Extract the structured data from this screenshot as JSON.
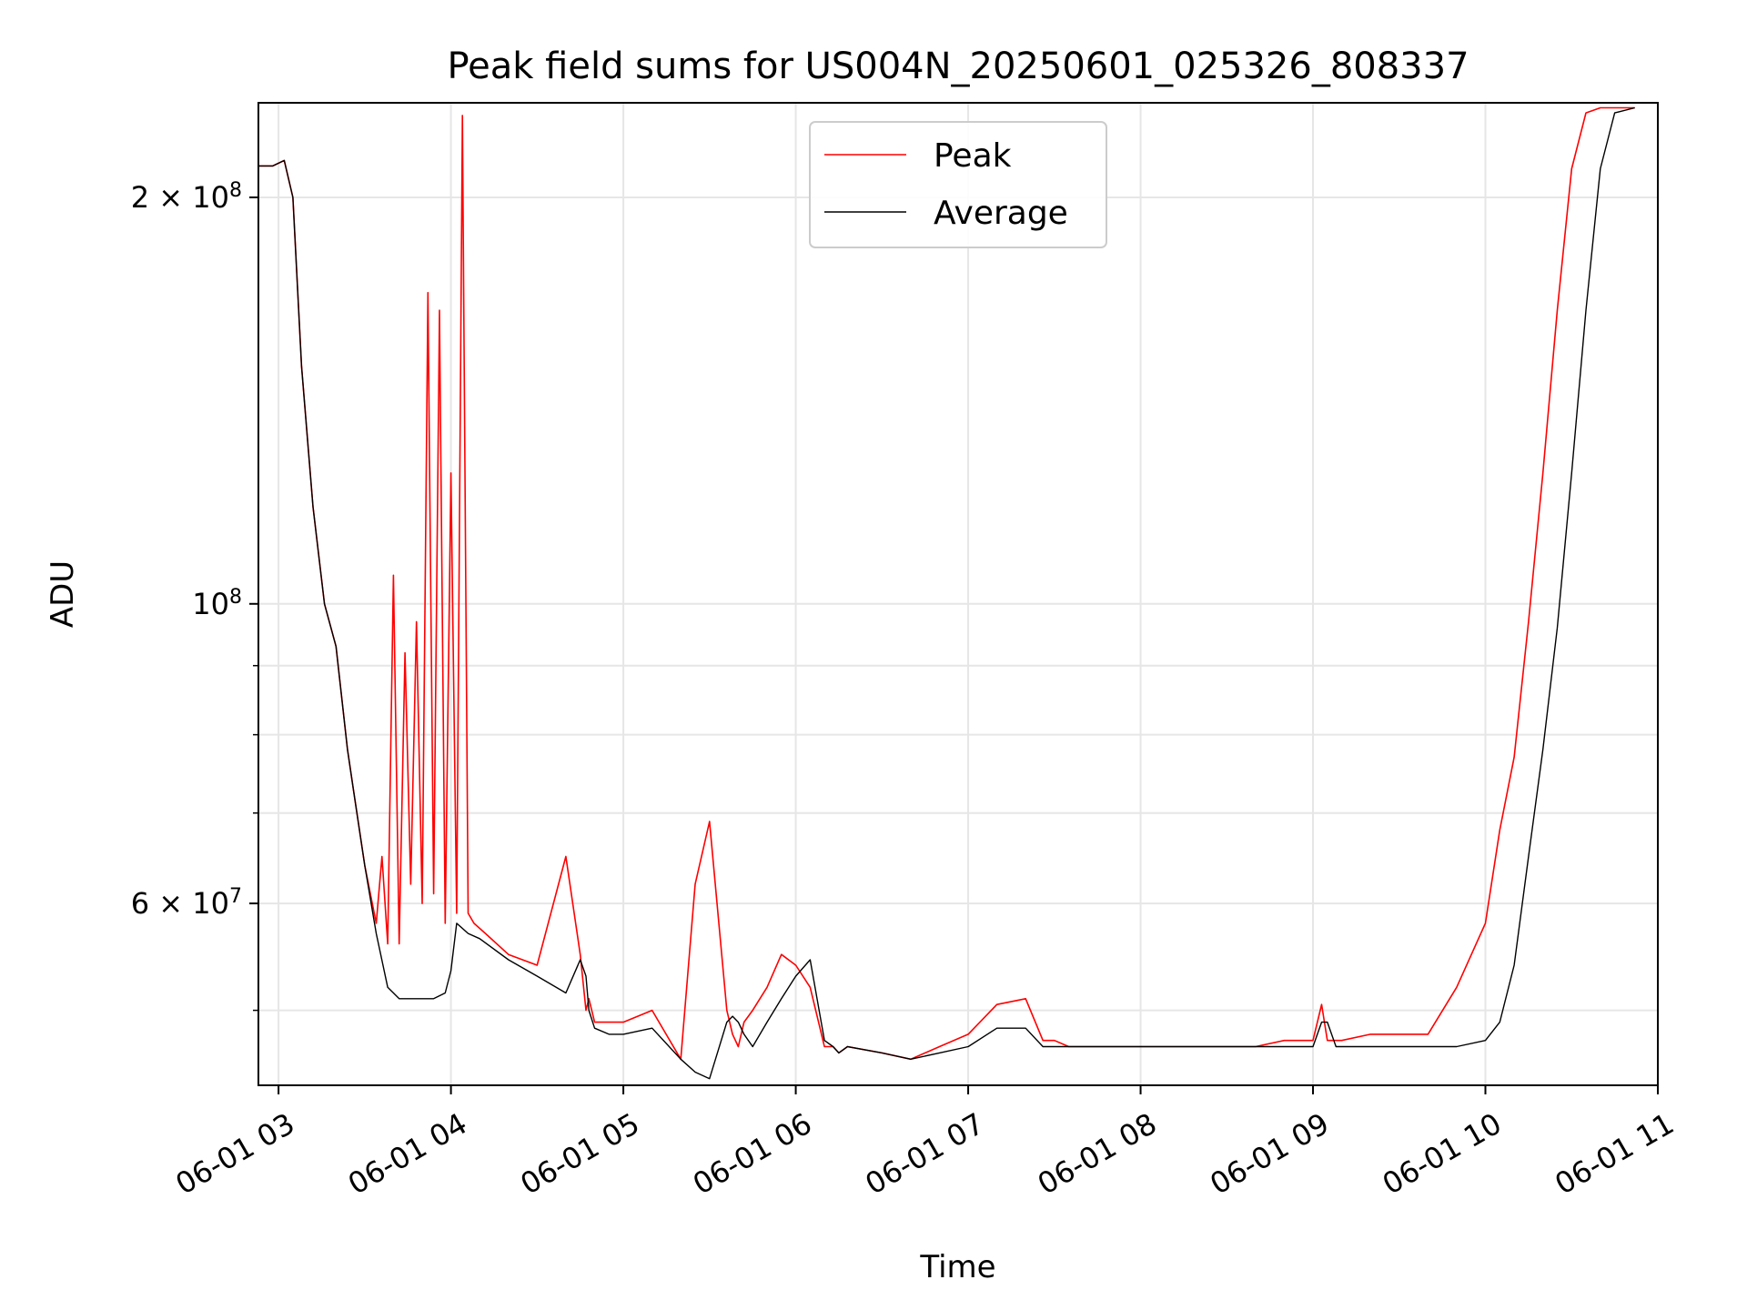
{
  "chart_data": {
    "type": "line",
    "title": "Peak field sums for US004N_20250601_025326_808337",
    "xlabel": "Time",
    "ylabel": "ADU",
    "y_scale": "log",
    "grid": true,
    "legend_position": "upper center",
    "xlim": [
      "2025-06-01 02:53",
      "2025-06-01 11:00"
    ],
    "ylim": [
      44000000,
      235000000
    ],
    "x_ticks": [
      "06-01 03",
      "06-01 04",
      "06-01 05",
      "06-01 06",
      "06-01 07",
      "06-01 08",
      "06-01 09",
      "06-01 10",
      "06-01 11"
    ],
    "y_ticks": [
      {
        "value": 60000000,
        "base": "6 × 10",
        "exp": "7"
      },
      {
        "value": 100000000,
        "base": "10",
        "exp": "8"
      },
      {
        "value": 200000000,
        "base": "2 × 10",
        "exp": "8"
      }
    ],
    "series": [
      {
        "name": "Peak",
        "color": "#ff0000",
        "x": [
          "02:53",
          "02:58",
          "03:02",
          "03:05",
          "03:08",
          "03:12",
          "03:16",
          "03:20",
          "03:24",
          "03:26",
          "03:30",
          "03:34",
          "03:36",
          "03:38",
          "03:40",
          "03:42",
          "03:44",
          "03:46",
          "03:48",
          "03:50",
          "03:52",
          "03:54",
          "03:56",
          "03:58",
          "04:00",
          "04:02",
          "04:04",
          "04:06",
          "04:08",
          "04:12",
          "04:20",
          "04:30",
          "04:40",
          "04:45",
          "04:47",
          "04:48",
          "04:50",
          "04:55",
          "05:00",
          "05:10",
          "05:20",
          "05:25",
          "05:30",
          "05:36",
          "05:38",
          "05:40",
          "05:42",
          "05:45",
          "05:50",
          "05:55",
          "06:00",
          "06:05",
          "06:10",
          "06:13",
          "06:15",
          "06:18",
          "06:30",
          "06:40",
          "06:50",
          "07:00",
          "07:10",
          "07:20",
          "07:26",
          "07:30",
          "07:35",
          "07:38",
          "07:40",
          "07:45",
          "07:50",
          "08:00",
          "08:20",
          "08:40",
          "08:50",
          "09:00",
          "09:03",
          "09:05",
          "09:08",
          "09:10",
          "09:20",
          "09:40",
          "09:50",
          "10:00",
          "10:05",
          "10:10",
          "10:15",
          "10:20",
          "10:25",
          "10:30",
          "10:35",
          "10:40",
          "10:45",
          "10:52"
        ],
        "y": [
          211000000,
          211000000,
          213000000,
          200000000,
          150000000,
          118000000,
          100000000,
          93000000,
          78000000,
          73000000,
          64000000,
          58000000,
          65000000,
          56000000,
          105000000,
          56000000,
          92000000,
          62000000,
          97000000,
          60000000,
          170000000,
          61000000,
          165000000,
          58000000,
          125000000,
          59000000,
          230000000,
          59000000,
          58000000,
          57000000,
          55000000,
          54000000,
          65000000,
          55000000,
          50000000,
          51000000,
          49000000,
          49000000,
          49000000,
          50000000,
          46000000,
          62000000,
          69000000,
          50000000,
          48000000,
          47000000,
          49000000,
          50000000,
          52000000,
          55000000,
          54000000,
          52000000,
          47000000,
          47000000,
          46500000,
          47000000,
          46500000,
          46000000,
          47000000,
          48000000,
          50500000,
          51000000,
          47500000,
          47500000,
          47000000,
          47000000,
          47000000,
          47000000,
          47000000,
          47000000,
          47000000,
          47000000,
          47500000,
          47500000,
          50500000,
          47500000,
          47500000,
          47500000,
          48000000,
          48000000,
          52000000,
          58000000,
          68000000,
          77000000,
          97000000,
          125000000,
          165000000,
          210000000,
          231000000,
          233000000,
          233000000,
          233000000
        ]
      },
      {
        "name": "Average",
        "color": "#000000",
        "x": [
          "02:53",
          "02:58",
          "03:02",
          "03:05",
          "03:08",
          "03:12",
          "03:16",
          "03:20",
          "03:24",
          "03:26",
          "03:30",
          "03:34",
          "03:38",
          "03:42",
          "03:46",
          "03:50",
          "03:54",
          "03:58",
          "04:00",
          "04:02",
          "04:06",
          "04:10",
          "04:20",
          "04:30",
          "04:40",
          "04:45",
          "04:47",
          "04:48",
          "04:50",
          "04:55",
          "05:00",
          "05:10",
          "05:20",
          "05:25",
          "05:30",
          "05:36",
          "05:38",
          "05:40",
          "05:42",
          "05:45",
          "05:50",
          "05:55",
          "06:00",
          "06:05",
          "06:10",
          "06:13",
          "06:15",
          "06:18",
          "06:30",
          "06:40",
          "06:50",
          "07:00",
          "07:10",
          "07:20",
          "07:26",
          "07:30",
          "07:35",
          "07:38",
          "07:40",
          "07:45",
          "07:50",
          "08:00",
          "08:20",
          "08:40",
          "08:50",
          "09:00",
          "09:03",
          "09:05",
          "09:08",
          "09:10",
          "09:20",
          "09:40",
          "09:50",
          "10:00",
          "10:05",
          "10:10",
          "10:15",
          "10:20",
          "10:25",
          "10:30",
          "10:35",
          "10:40",
          "10:45",
          "10:52"
        ],
        "y": [
          211000000,
          211000000,
          213000000,
          200000000,
          150000000,
          118000000,
          100000000,
          93000000,
          78000000,
          73000000,
          64000000,
          57000000,
          52000000,
          51000000,
          51000000,
          51000000,
          51000000,
          51500000,
          53500000,
          58000000,
          57000000,
          56500000,
          54500000,
          53000000,
          51500000,
          54500000,
          53000000,
          50000000,
          48500000,
          48000000,
          48000000,
          48500000,
          46000000,
          45000000,
          44500000,
          49000000,
          49500000,
          49000000,
          48000000,
          47000000,
          49000000,
          51000000,
          53000000,
          54500000,
          47500000,
          47000000,
          46500000,
          47000000,
          46500000,
          46000000,
          46500000,
          47000000,
          48500000,
          48500000,
          47000000,
          47000000,
          47000000,
          47000000,
          47000000,
          47000000,
          47000000,
          47000000,
          47000000,
          47000000,
          47000000,
          47000000,
          49000000,
          49000000,
          47000000,
          47000000,
          47000000,
          47000000,
          47000000,
          47500000,
          49000000,
          54000000,
          65000000,
          78000000,
          96000000,
          125000000,
          165000000,
          210000000,
          231000000,
          233000000
        ]
      }
    ]
  }
}
